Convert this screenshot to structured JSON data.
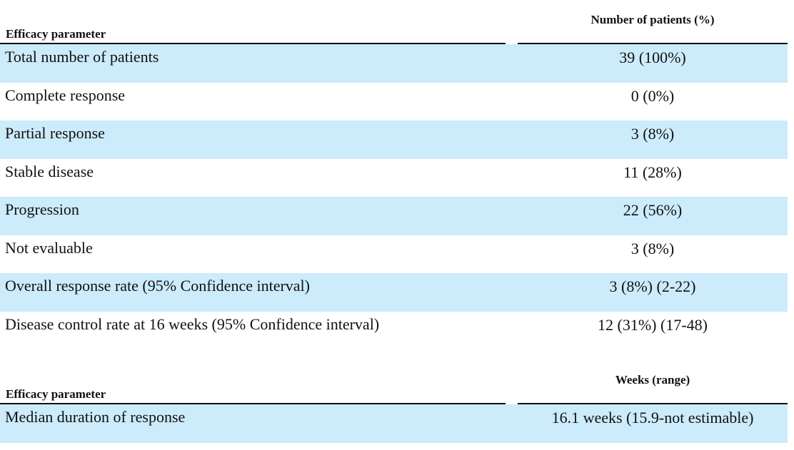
{
  "table1": {
    "label_header": "Efficacy parameter",
    "value_header": "Number of patients (%)",
    "rows": [
      {
        "label": "Total number of patients",
        "value": "39 (100%)"
      },
      {
        "label": "Complete response",
        "value": "0 (0%)"
      },
      {
        "label": "Partial response",
        "value": "3 (8%)"
      },
      {
        "label": "Stable disease",
        "value": "11 (28%)"
      },
      {
        "label": "Progression",
        "value": "22 (56%)"
      },
      {
        "label": "Not evaluable",
        "value": "3 (8%)"
      },
      {
        "label": "Overall response rate (95% Confidence interval)",
        "value": "3 (8%) (2-22)"
      },
      {
        "label": "Disease control rate at 16 weeks (95% Confidence interval)",
        "value": "12 (31%) (17-48)"
      }
    ]
  },
  "table2": {
    "label_header": "Efficacy parameter",
    "value_header": "Weeks (range)",
    "rows": [
      {
        "label": "Median duration of response",
        "value": "16.1 weeks (15.9-not estimable)"
      }
    ]
  },
  "colors": {
    "row_shade": "#ccebfb",
    "text": "#111111"
  }
}
